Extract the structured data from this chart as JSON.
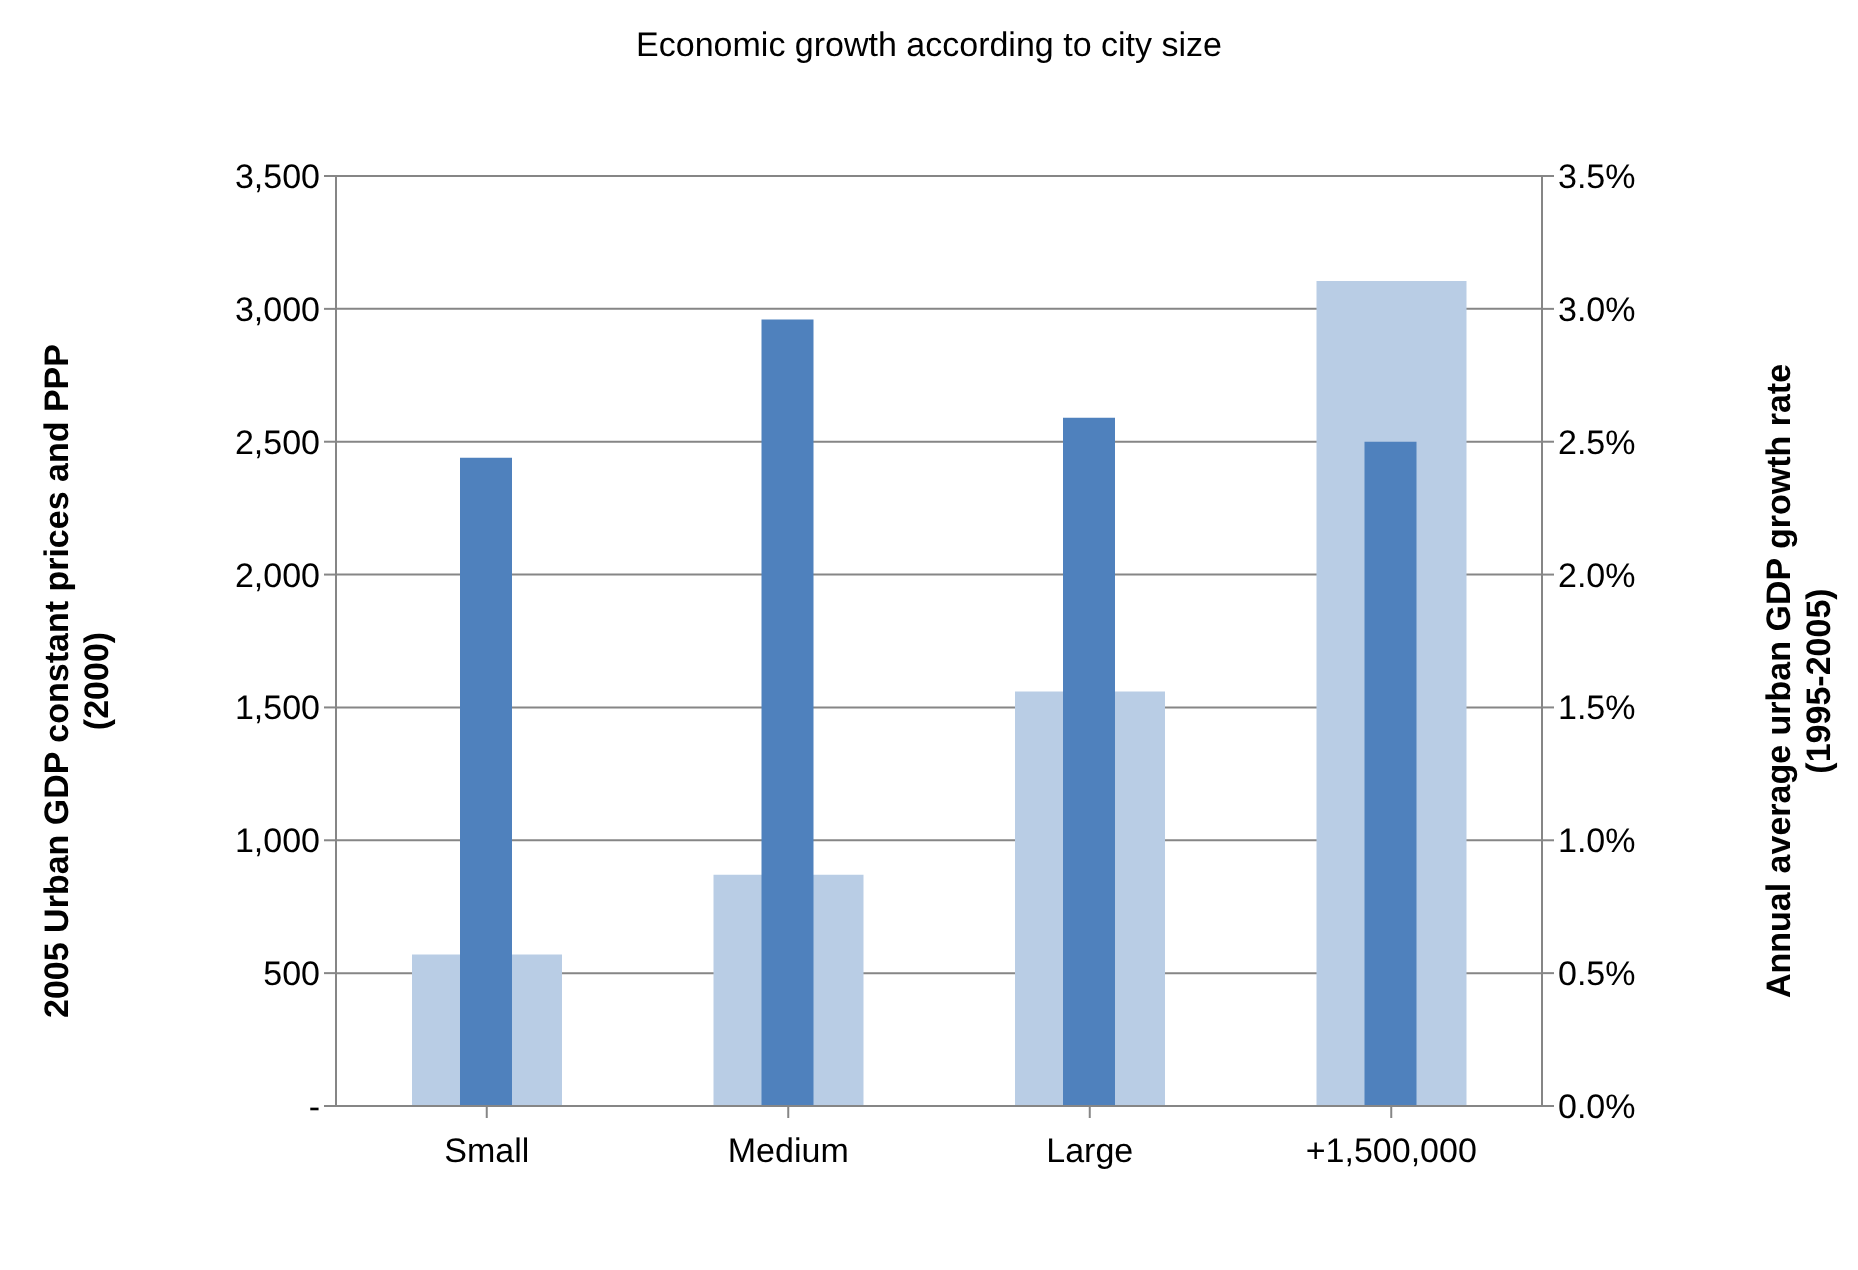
{
  "chart_data": {
    "type": "bar",
    "title": "Economic growth according to city size",
    "ylabel": "2005  Urban GDP constant prices and PPP (2000)",
    "y2label": "Annual average urban GDP growth rate (1995-2005)",
    "categories": [
      "Small",
      "Medium",
      "Large",
      "+1,500,000"
    ],
    "series": [
      {
        "color": "#b9cde5",
        "values": [
          570,
          870,
          1560,
          3105
        ]
      },
      {
        "color": "#4f81bd",
        "axis": "y2",
        "values": [
          2.44,
          2.96,
          2.59,
          2.5
        ]
      }
    ],
    "ylim": [
      0,
      3500
    ],
    "yticks": [
      {
        "value": 0,
        "label": "-"
      },
      {
        "value": 500,
        "label": "500"
      },
      {
        "value": 1000,
        "label": "1,000"
      },
      {
        "value": 1500,
        "label": "1,500"
      },
      {
        "value": 2000,
        "label": "2,000"
      },
      {
        "value": 2500,
        "label": "2,500"
      },
      {
        "value": 3000,
        "label": "3,000"
      },
      {
        "value": 3500,
        "label": "3,500"
      }
    ],
    "y2lim": [
      0,
      3.5
    ],
    "y2ticks": [
      {
        "value": 0,
        "label": "0.0%"
      },
      {
        "value": 0.5,
        "label": "0.5%"
      },
      {
        "value": 1,
        "label": "1.0%"
      },
      {
        "value": 1.5,
        "label": "1.5%"
      },
      {
        "value": 2,
        "label": "2.0%"
      },
      {
        "value": 2.5,
        "label": "2.5%"
      },
      {
        "value": 3,
        "label": "3.0%"
      },
      {
        "value": 3.5,
        "label": "3.5%"
      }
    ],
    "grid": "y"
  }
}
